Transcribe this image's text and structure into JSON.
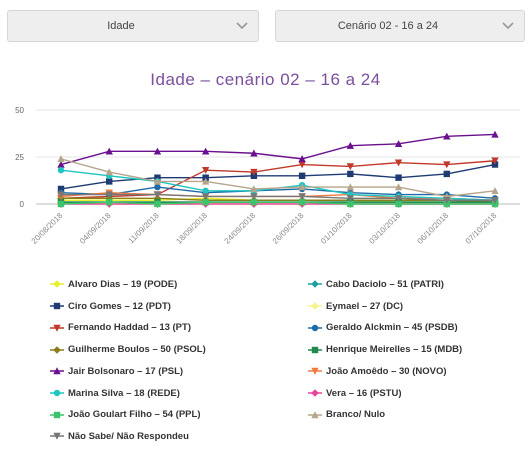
{
  "filters": {
    "group_select": "Idade",
    "scenario_select": "Cenário 02 - 16 a 24"
  },
  "icons": {
    "dropdown": "chevron-down-icon"
  },
  "chart_data": {
    "type": "line",
    "title": "Idade – cenário 02 – 16 a 24",
    "xlabel": "",
    "ylabel": "",
    "ylim": [
      0,
      50
    ],
    "yticks": [
      "0",
      "25",
      "50"
    ],
    "grid": true,
    "legend_position": "bottom",
    "categories": [
      "20/08/2018",
      "04/09/2018",
      "11/09/2018",
      "18/09/2018",
      "24/09/2018",
      "26/09/2018",
      "01/10/2018",
      "03/10/2018",
      "06/10/2018",
      "07/10/2018"
    ],
    "series": [
      {
        "name": "Alvaro Dias – 19 (PODE)",
        "color": "#e6f02b",
        "marker": "diamond",
        "values": [
          2,
          2,
          2,
          3,
          2,
          2,
          2,
          1,
          1,
          1
        ]
      },
      {
        "name": "Cabo Daciolo – 51 (PATRI)",
        "color": "#1f9da3",
        "marker": "diamond",
        "values": [
          1,
          1,
          1,
          1,
          1,
          1,
          1,
          1,
          1,
          1
        ]
      },
      {
        "name": "Ciro Gomes – 12 (PDT)",
        "color": "#1f3b73",
        "marker": "square",
        "values": [
          8,
          12,
          14,
          14,
          15,
          15,
          16,
          14,
          16,
          21
        ]
      },
      {
        "name": "Eymael – 27 (DC)",
        "color": "#f6f38b",
        "marker": "diamond",
        "values": [
          0,
          0,
          0,
          0,
          0,
          0,
          0,
          0,
          0,
          0
        ]
      },
      {
        "name": "Fernando Haddad – 13 (PT)",
        "color": "#c0392b",
        "marker": "triangle-down",
        "values": [
          3,
          4,
          5,
          18,
          17,
          21,
          20,
          22,
          21,
          23
        ]
      },
      {
        "name": "Geraldo Alckmin – 45 (PSDB)",
        "color": "#1c6aa8",
        "marker": "circle",
        "values": [
          6,
          5,
          9,
          6,
          7,
          8,
          6,
          5,
          5,
          3
        ]
      },
      {
        "name": "Guilherme Boulos – 50 (PSOL)",
        "color": "#8b7d1a",
        "marker": "diamond",
        "values": [
          3,
          3,
          3,
          2,
          2,
          2,
          2,
          2,
          2,
          1
        ]
      },
      {
        "name": "Henrique Meirelles – 15 (MDB)",
        "color": "#1f8a4c",
        "marker": "square",
        "values": [
          1,
          1,
          1,
          1,
          1,
          1,
          1,
          1,
          1,
          1
        ]
      },
      {
        "name": "Jair Bolsonaro – 17 (PSL)",
        "color": "#6a0f8e",
        "marker": "triangle",
        "values": [
          21,
          28,
          28,
          28,
          27,
          24,
          31,
          32,
          36,
          37
        ]
      },
      {
        "name": "João Amoêdo – 30 (NOVO)",
        "color": "#f07b3f",
        "marker": "triangle-down",
        "values": [
          4,
          6,
          5,
          4,
          4,
          4,
          5,
          3,
          3,
          2
        ]
      },
      {
        "name": "Marina Silva – 18 (REDE)",
        "color": "#1fc5c0",
        "marker": "circle",
        "values": [
          18,
          15,
          12,
          7,
          7,
          10,
          5,
          4,
          3,
          2
        ]
      },
      {
        "name": "Vera – 16 (PSTU)",
        "color": "#e8459b",
        "marker": "diamond",
        "values": [
          0,
          0,
          0,
          0,
          0,
          0,
          0,
          0,
          0,
          0
        ]
      },
      {
        "name": "João Goulart Filho – 54 (PPL)",
        "color": "#3dc46a",
        "marker": "square",
        "values": [
          0,
          1,
          0,
          1,
          1,
          1,
          0,
          0,
          0,
          0
        ]
      },
      {
        "name": "Branco/ Nulo",
        "color": "#b5a58a",
        "marker": "triangle",
        "values": [
          24,
          17,
          12,
          12,
          8,
          9,
          9,
          9,
          4,
          7
        ]
      },
      {
        "name": "Não Sabe/ Não Respondeu",
        "color": "#777777",
        "marker": "triangle-down",
        "values": [
          5,
          5,
          5,
          4,
          4,
          4,
          3,
          3,
          2,
          2
        ]
      }
    ]
  }
}
